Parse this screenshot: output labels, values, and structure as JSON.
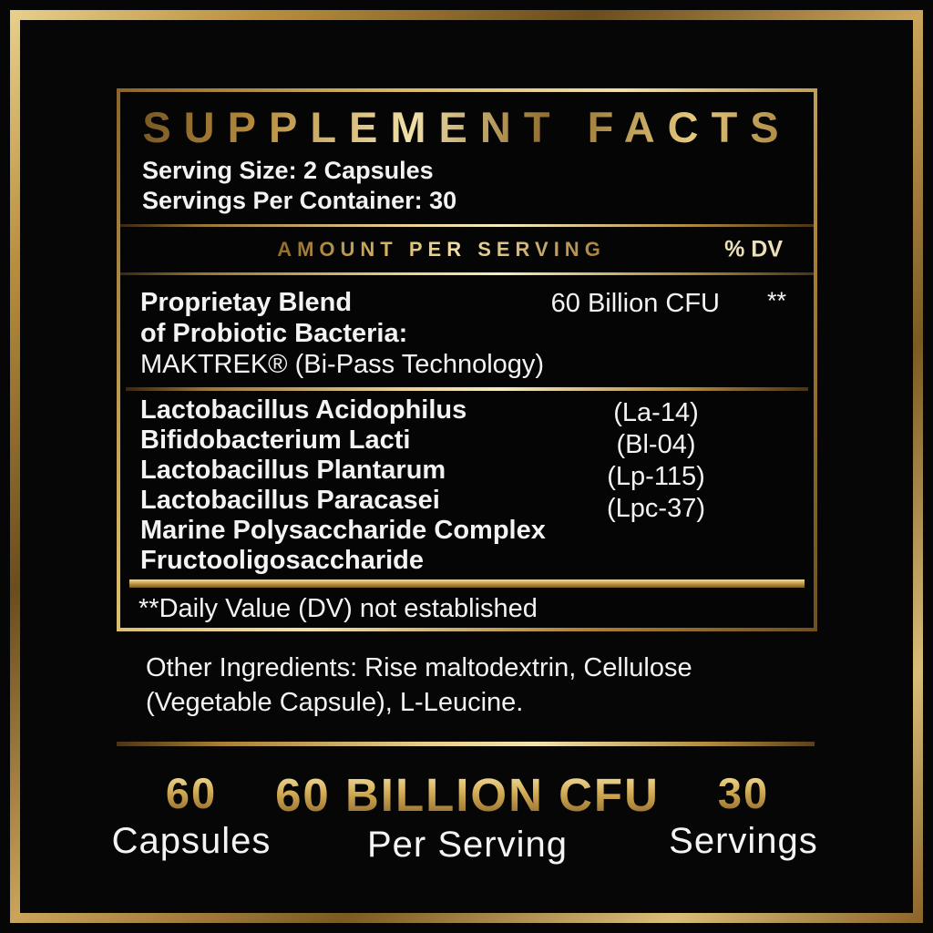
{
  "panel": {
    "title": "SUPPLEMENT FACTS",
    "serving_size": "Serving Size: 2 Capsules",
    "servings_per_container": "Servings Per Container: 30",
    "amount_header": "AMOUNT PER SERVING",
    "dv_header": "% DV",
    "blend": {
      "name_line1": "Proprietay Blend",
      "name_line2": "of Probiotic Bacteria:",
      "name_line3": "MAKTREK® (Bi-Pass Technology)",
      "amount": "60 Billion CFU",
      "dv": "**"
    },
    "ingredients": [
      {
        "name": "Lactobacillus Acidophilus",
        "strain": "(La-14)"
      },
      {
        "name": "Bifidobacterium Lacti",
        "strain": "(Bl-04)"
      },
      {
        "name": "Lactobacillus Plantarum",
        "strain": "(Lp-115)"
      },
      {
        "name": "Lactobacillus Paracasei",
        "strain": "(Lpc-37)"
      },
      {
        "name": "Marine Polysaccharide Complex",
        "strain": ""
      },
      {
        "name": "Fructooligosaccharide",
        "strain": ""
      }
    ],
    "dv_note": "**Daily Value (DV) not established",
    "other_ingredients": "Other Ingredients: Rise maltodextrin, Cellulose (Vegetable Capsule), L-Leucine."
  },
  "stats": [
    {
      "value": "60",
      "label": "Capsules"
    },
    {
      "value": "60 BILLION CFU",
      "label": "Per Serving"
    },
    {
      "value": "30",
      "label": "Servings"
    }
  ],
  "colors": {
    "background": "#060606",
    "gold_light": "#f0e0a8",
    "gold_mid": "#c9a24b",
    "gold_dark": "#6b4c1c",
    "text_white": "#f3f3f3"
  }
}
